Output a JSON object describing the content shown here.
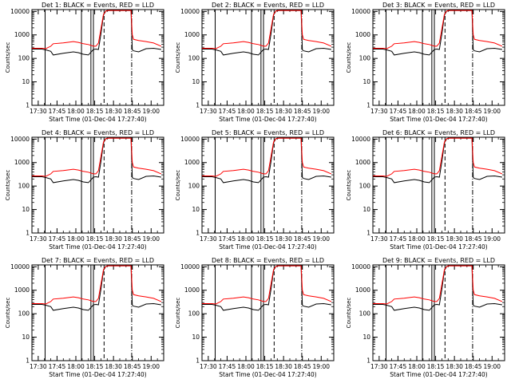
{
  "chart_data": [
    {
      "type": "line",
      "title": "Det 1: BLACK = Events, RED = LLD",
      "ylabel": "Counts/sec",
      "xlabel": "Start Time (01-Dec-04 17:27:40)"
    },
    {
      "type": "line",
      "title": "Det 2: BLACK = Events, RED = LLD",
      "ylabel": "Counts/sec",
      "xlabel": "Start Time (01-Dec-04 17:27:40)"
    },
    {
      "type": "line",
      "title": "Det 3: BLACK = Events, RED = LLD",
      "ylabel": "Counts/sec",
      "xlabel": "Start Time (01-Dec-04 17:27:40)"
    },
    {
      "type": "line",
      "title": "Det 4: BLACK = Events, RED = LLD",
      "ylabel": "Counts/sec",
      "xlabel": "Start Time (01-Dec-04 17:27:40)"
    },
    {
      "type": "line",
      "title": "Det 5: BLACK = Events, RED = LLD",
      "ylabel": "Counts/sec",
      "xlabel": "Start Time (01-Dec-04 17:27:40)"
    },
    {
      "type": "line",
      "title": "Det 6: BLACK = Events, RED = LLD",
      "ylabel": "Counts/sec",
      "xlabel": "Start Time (01-Dec-04 17:27:40)"
    },
    {
      "type": "line",
      "title": "Det 7: BLACK = Events, RED = LLD",
      "ylabel": "Counts/sec",
      "xlabel": "Start Time (01-Dec-04 17:27:40)"
    },
    {
      "type": "line",
      "title": "Det 8: BLACK = Events, RED = LLD",
      "ylabel": "Counts/sec",
      "xlabel": "Start Time (01-Dec-04 17:27:40)"
    },
    {
      "type": "line",
      "title": "Det 9: BLACK = Events, RED = LLD",
      "ylabel": "Counts/sec",
      "xlabel": "Start Time (01-Dec-04 17:27:40)"
    }
  ],
  "shared": {
    "xticks": [
      "17:30",
      "17:45",
      "18:00",
      "18:15",
      "18:30",
      "18:45",
      "19:00"
    ],
    "xtick_minutes": [
      30,
      45,
      60,
      75,
      90,
      105,
      120
    ],
    "xlim_minutes": [
      25,
      130
    ],
    "x_origin": "17:00",
    "yticks": [
      "1",
      "10",
      "100",
      "1000",
      "10000"
    ],
    "ytick_values": [
      1,
      10,
      100,
      1000,
      10000
    ],
    "ylim": [
      1,
      12000
    ],
    "yscale": "log",
    "series": [
      {
        "name": "Events",
        "color": "#000000"
      },
      {
        "name": "LLD",
        "color": "#ff0000"
      }
    ],
    "vlines": [
      {
        "x": 35.5,
        "style": "solid"
      },
      {
        "x": 64.5,
        "style": "solid"
      },
      {
        "x": 72,
        "style": "solid"
      },
      {
        "x": 74,
        "style": "solid"
      },
      {
        "x": 82.5,
        "style": "dashed"
      },
      {
        "x": 104.5,
        "style": "dashdot"
      }
    ],
    "lld_series": {
      "x": [
        25,
        33,
        36,
        40,
        42,
        50,
        58,
        62,
        66,
        70,
        74,
        76,
        78,
        80,
        82,
        84,
        86,
        104,
        105,
        106,
        110,
        116,
        122,
        128
      ],
      "y": [
        270,
        270,
        260,
        330,
        420,
        460,
        520,
        480,
        420,
        390,
        330,
        330,
        450,
        1800,
        7500,
        10500,
        11000,
        11000,
        1000,
        650,
        580,
        520,
        450,
        330
      ]
    },
    "events_series": {
      "x": [
        25,
        33,
        36,
        40,
        42,
        50,
        58,
        62,
        66,
        70,
        74,
        76,
        78,
        80,
        82,
        84,
        86,
        104,
        105,
        106,
        110,
        116,
        122,
        128
      ],
      "y": [
        250,
        250,
        230,
        200,
        140,
        165,
        190,
        175,
        150,
        140,
        240,
        250,
        240,
        1100,
        7000,
        10500,
        11000,
        11000,
        230,
        210,
        190,
        260,
        270,
        240
      ]
    }
  }
}
